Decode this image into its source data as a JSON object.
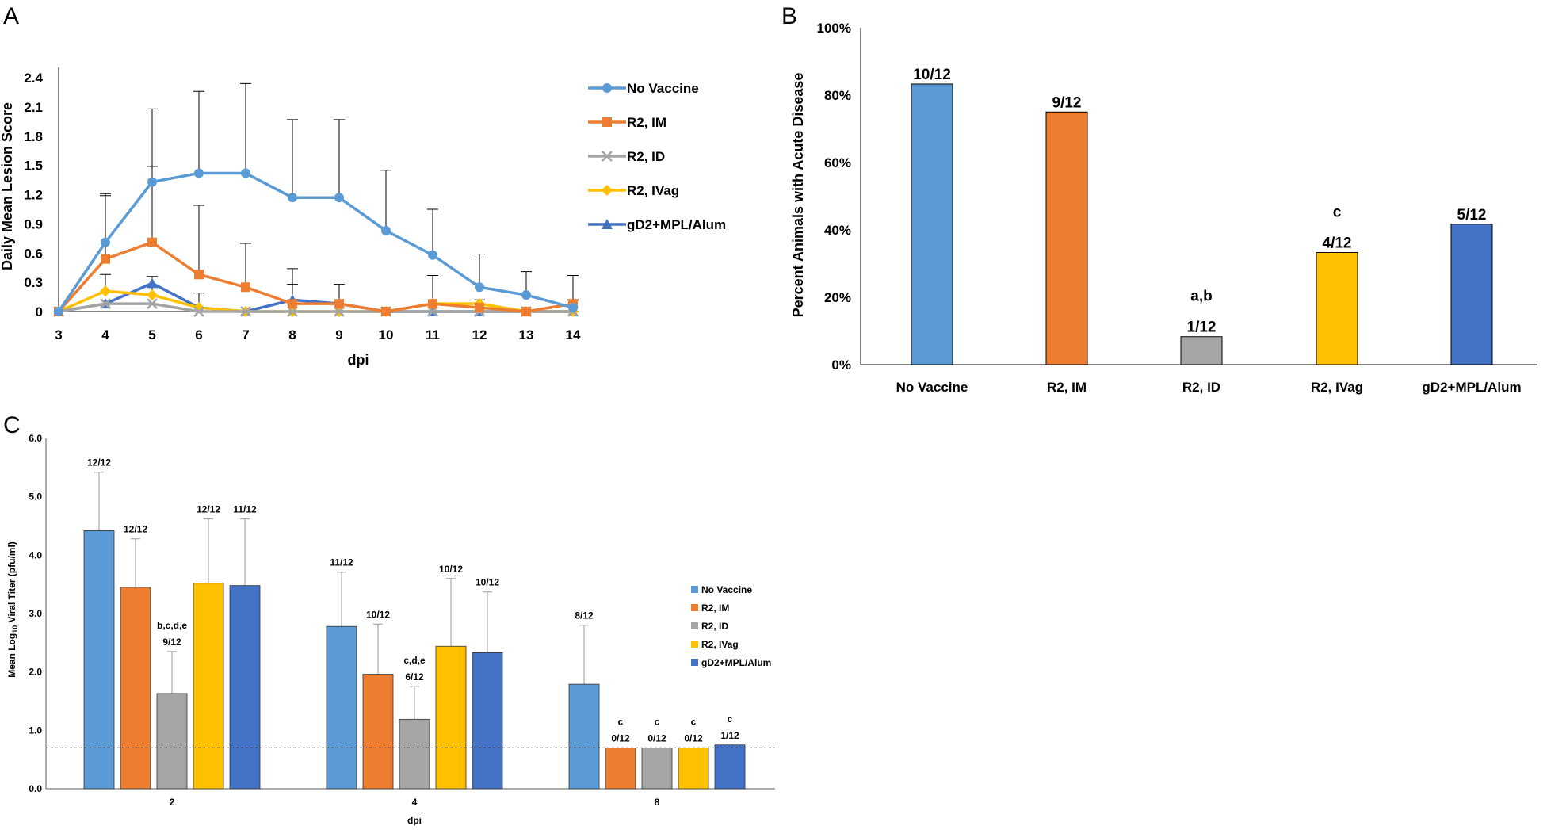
{
  "chart_data": [
    {
      "panel": "A",
      "type": "line",
      "title": "",
      "xlabel": "dpi",
      "ylabel": "Daily Mean Lesion Score",
      "x": [
        3,
        4,
        5,
        6,
        7,
        8,
        9,
        10,
        11,
        12,
        13,
        14
      ],
      "ylim": [
        0,
        2.4
      ],
      "yticks": [
        "0",
        "0.3",
        "0.6",
        "0.9",
        "1.2",
        "1.5",
        "1.8",
        "2.1",
        "2.4"
      ],
      "legend_position": "right",
      "series": [
        {
          "name": "No Vaccine",
          "color": "#5B9BD5",
          "marker": "circle",
          "values": [
            0,
            0.71,
            1.33,
            1.42,
            1.42,
            1.17,
            1.17,
            0.83,
            0.58,
            0.25,
            0.17,
            0.04
          ],
          "error_upper": [
            0,
            1.19,
            2.08,
            2.26,
            2.34,
            1.97,
            1.97,
            1.45,
            1.05,
            0.59,
            0.41,
            0.12
          ]
        },
        {
          "name": "R2, IM",
          "color": "#ED7D31",
          "marker": "square",
          "values": [
            0,
            0.54,
            0.71,
            0.38,
            0.25,
            0.08,
            0.08,
            0,
            0.08,
            0.04,
            0,
            0.08
          ],
          "error_upper": [
            0,
            1.21,
            1.49,
            1.09,
            0.7,
            0.28,
            0.28,
            0,
            0.37,
            0.12,
            0,
            0.37
          ]
        },
        {
          "name": "R2, ID",
          "color": "#A5A5A5",
          "marker": "x",
          "values": [
            0,
            0.08,
            0.08,
            0,
            0,
            0,
            0,
            0,
            0,
            0,
            0,
            0
          ],
          "error_upper": [
            0,
            0,
            0,
            0,
            0,
            0,
            0,
            0,
            0,
            0,
            0,
            0
          ]
        },
        {
          "name": "R2, IVag",
          "color": "#FFC000",
          "marker": "diamond",
          "values": [
            0,
            0.21,
            0.17,
            0.04,
            0,
            0,
            0,
            0,
            0.08,
            0.08,
            0,
            0
          ],
          "error_upper": [
            0,
            0.38,
            0.36,
            0.19,
            0,
            0,
            0,
            0,
            0,
            0,
            0,
            0
          ]
        },
        {
          "name": "gD2+MPL/Alum",
          "color": "#4472C4",
          "marker": "triangle",
          "values": [
            0,
            0.08,
            0.29,
            0.04,
            0,
            0.12,
            0.08,
            0,
            0,
            0,
            0,
            0
          ],
          "error_upper": [
            0,
            0,
            0,
            0,
            0,
            0.44,
            0,
            0,
            0,
            0,
            0,
            0
          ]
        }
      ]
    },
    {
      "panel": "B",
      "type": "bar",
      "title": "",
      "xlabel": "",
      "ylabel": "Percent Animals with Acute Disease",
      "categories": [
        "No Vaccine",
        "R2, IM",
        "R2, ID",
        "R2, IVag",
        "gD2+MPL/Alum"
      ],
      "values": [
        83.3,
        75.0,
        8.3,
        33.3,
        41.7
      ],
      "colors": [
        "#5B9BD5",
        "#ED7D31",
        "#A5A5A5",
        "#FFC000",
        "#4472C4"
      ],
      "data_labels": [
        "10/12",
        "9/12",
        "1/12",
        "4/12",
        "5/12"
      ],
      "annotations": [
        "",
        "",
        "a,b",
        "c",
        ""
      ],
      "ylim": [
        0,
        100
      ],
      "yticks": [
        "0%",
        "20%",
        "40%",
        "60%",
        "80%",
        "100%"
      ]
    },
    {
      "panel": "C",
      "type": "bar",
      "title": "",
      "xlabel": "dpi",
      "ylabel_main": "Mean Log",
      "ylabel_sub": "10",
      "ylabel_rest": " Viral Titer (pfu/ml)",
      "categories": [
        "2",
        "4",
        "8"
      ],
      "ylim": [
        0,
        6
      ],
      "yticks": [
        "0.0",
        "1.0",
        "2.0",
        "3.0",
        "4.0",
        "5.0",
        "6.0"
      ],
      "limit_of_detection": 0.7,
      "legend_position": "right",
      "series": [
        {
          "name": "No Vaccine",
          "color": "#5B9BD5",
          "values": [
            4.42,
            2.78,
            1.79
          ],
          "error_upper": [
            5.42,
            3.71,
            2.8
          ],
          "labels": [
            "12/12",
            "11/12",
            "8/12"
          ],
          "annotations": [
            "",
            "",
            ""
          ]
        },
        {
          "name": "R2, IM",
          "color": "#ED7D31",
          "values": [
            3.45,
            1.96,
            0.7
          ],
          "error_upper": [
            4.28,
            2.82,
            0.7
          ],
          "labels": [
            "12/12",
            "10/12",
            "0/12"
          ],
          "annotations": [
            "",
            "",
            "c"
          ]
        },
        {
          "name": "R2, ID",
          "color": "#A5A5A5",
          "values": [
            1.63,
            1.19,
            0.7
          ],
          "error_upper": [
            2.35,
            1.75,
            0.7
          ],
          "labels": [
            "9/12",
            "6/12",
            "0/12"
          ],
          "annotations": [
            "b,c,d,e",
            "c,d,e",
            "c"
          ]
        },
        {
          "name": "R2, IVag",
          "color": "#FFC000",
          "values": [
            3.52,
            2.44,
            0.7
          ],
          "error_upper": [
            4.62,
            3.6,
            0.7
          ],
          "labels": [
            "12/12",
            "10/12",
            "0/12"
          ],
          "annotations": [
            "",
            "",
            "c"
          ]
        },
        {
          "name": "gD2+MPL/Alum",
          "color": "#4472C4",
          "values": [
            3.48,
            2.33,
            0.75
          ],
          "error_upper": [
            4.62,
            3.37,
            0.75
          ],
          "labels": [
            "11/12",
            "10/12",
            "1/12"
          ],
          "annotations": [
            "",
            "",
            "c"
          ]
        }
      ]
    }
  ],
  "panels": {
    "a": "A",
    "b": "B",
    "c": "C"
  }
}
